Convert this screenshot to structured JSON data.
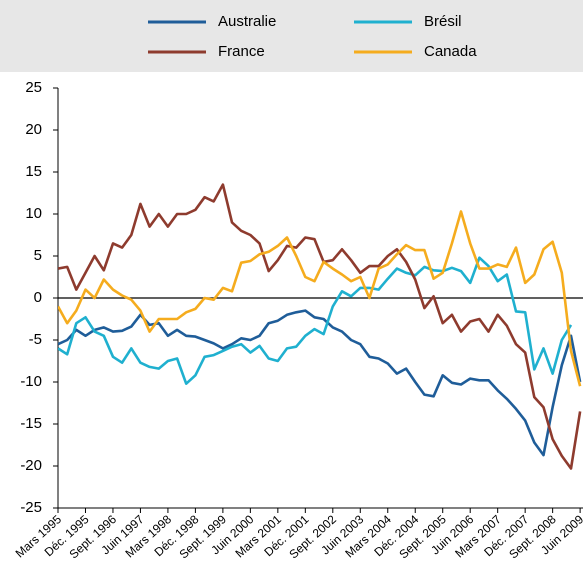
{
  "chart_data": {
    "type": "line",
    "categories": [
      "Mars 1995",
      null,
      null,
      "Déc. 1995",
      null,
      null,
      "Sept. 1996",
      null,
      null,
      "Juin 1997",
      null,
      null,
      "Mars 1998",
      null,
      null,
      "Déc. 1998",
      null,
      null,
      "Sept. 1999",
      null,
      null,
      "Juin 2000",
      null,
      null,
      "Mars 2001",
      null,
      null,
      "Déc. 2001",
      null,
      null,
      "Sept. 2002",
      null,
      null,
      "Juin 2003",
      null,
      null,
      "Mars 2004",
      null,
      null,
      "Déc. 2004",
      null,
      null,
      "Sept. 2005",
      null,
      null,
      "Juin 2006",
      null,
      null,
      "Mars 2007",
      null,
      null,
      "Déc. 2007",
      null,
      null,
      "Sept. 2008",
      null,
      null,
      "Juin 2009"
    ],
    "series": [
      {
        "name": "Australie",
        "color": "#1f5d99",
        "values": [
          -5.5,
          -5,
          -3.8,
          -4.5,
          -3.8,
          -3.5,
          -4,
          -3.9,
          -3.4,
          -2,
          -3.2,
          -3,
          -4.5,
          -3.8,
          -4.5,
          -4.6,
          -5,
          -5.4,
          -6,
          -5.5,
          -4.8,
          -5,
          -4.5,
          -3,
          -2.7,
          -2,
          -1.7,
          -1.5,
          -2.3,
          -2.5,
          -3.5,
          -4,
          -5,
          -5.5,
          -7,
          -7.2,
          -7.8,
          -9,
          -8.4,
          -10,
          -11.5,
          -11.7,
          -9.2,
          -10.1,
          -10.3,
          -9.6,
          -9.8,
          -9.8,
          -11,
          -12,
          -13.2,
          -14.6,
          -17.2,
          -18.7,
          -13,
          -8,
          -4.5,
          -10
        ]
      },
      {
        "name": "Brésil",
        "color": "#1fb0cf",
        "values": [
          -6,
          -6.7,
          -3,
          -2.3,
          -4,
          -4.5,
          -7,
          -7.7,
          -6,
          -7.7,
          -8.2,
          -8.4,
          -7.5,
          -7.2,
          -10.2,
          -9.2,
          -7,
          -6.8,
          -6.3,
          -5.8,
          -5.5,
          -6.5,
          -5.7,
          -7.2,
          -7.5,
          -6,
          -5.8,
          -4.5,
          -3.7,
          -4.3,
          -1,
          0.8,
          0.2,
          1.2,
          1.2,
          1,
          2.3,
          3.5,
          3,
          2.7,
          3.7,
          3.3,
          3.2,
          3.6,
          3.2,
          1.8,
          4.8,
          3.8,
          2,
          2.8,
          -1.6,
          -1.7,
          -8.5,
          -6,
          -9,
          -5,
          -3.2,
          null
        ]
      },
      {
        "name": "France",
        "color": "#8e3b2e",
        "values": [
          3.5,
          3.7,
          1,
          3,
          5,
          3.3,
          6.5,
          6,
          7.5,
          11.2,
          8.5,
          10,
          8.5,
          10,
          10,
          10.5,
          12,
          11.5,
          13.5,
          9,
          8,
          7.5,
          6.5,
          3.2,
          4.5,
          6.2,
          6,
          7.2,
          7,
          4.3,
          4.5,
          5.8,
          4.5,
          3,
          3.8,
          3.8,
          5,
          5.8,
          4.3,
          2.2,
          -1.2,
          0.2,
          -3,
          -2,
          -4,
          -2.8,
          -2.5,
          -4,
          -2,
          -3.3,
          -5.5,
          -6.5,
          -11.8,
          -13,
          -16.8,
          -18.8,
          -20.3,
          -13.5
        ]
      },
      {
        "name": "Canada",
        "color": "#f5ac1e",
        "values": [
          -1,
          -3,
          -1.5,
          1,
          0,
          2.2,
          1,
          0.3,
          -0.2,
          -1.5,
          -4,
          -2.5,
          -2.5,
          -2.5,
          -1.7,
          -1.3,
          0,
          -0.2,
          1.2,
          0.8,
          4.2,
          4.4,
          5.2,
          5.5,
          6.2,
          7.2,
          5,
          2.5,
          2,
          4.3,
          3.5,
          2.8,
          2,
          2.5,
          0,
          3.5,
          4,
          5.2,
          6.3,
          5.7,
          5.7,
          2.3,
          3,
          6.5,
          10.3,
          6.5,
          3.5,
          3.5,
          4,
          3.7,
          6,
          1.8,
          2.8,
          5.8,
          6.7,
          3,
          -6.3,
          -10.5
        ]
      }
    ],
    "ylim": [
      -25,
      25
    ],
    "yticks": [
      -25,
      -20,
      -15,
      -10,
      -5,
      0,
      5,
      10,
      15,
      20,
      25
    ]
  }
}
